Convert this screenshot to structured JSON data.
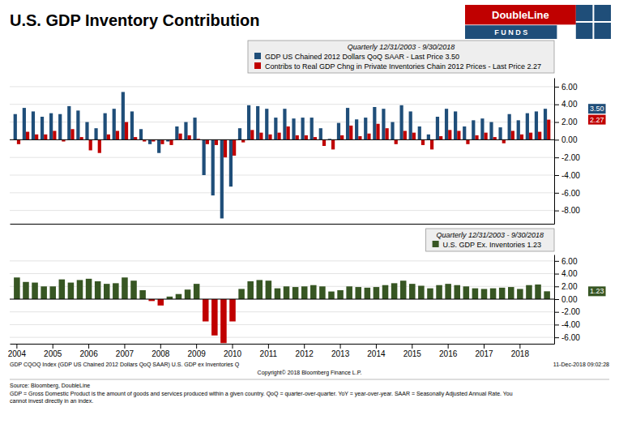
{
  "chart_data": [
    {
      "type": "bar",
      "title": "U.S. GDP Inventory Contribution",
      "subtitle": "Quarterly 12/31/2003 - 9/30/2018",
      "categories": [
        "2004",
        null,
        null,
        null,
        "2005",
        null,
        null,
        null,
        "2006",
        null,
        null,
        null,
        "2007",
        null,
        null,
        null,
        "2008",
        null,
        null,
        null,
        "2009",
        null,
        null,
        null,
        "2010",
        null,
        null,
        null,
        "2011",
        null,
        null,
        null,
        "2012",
        null,
        null,
        null,
        "2013",
        null,
        null,
        null,
        "2014",
        null,
        null,
        null,
        "2015",
        null,
        null,
        null,
        "2016",
        null,
        null,
        null,
        "2017",
        null,
        null,
        null,
        "2018",
        null,
        null,
        null
      ],
      "series": [
        {
          "name": "GDP US Chained 2012 Dollars QoQ SAAR - Last Price 3.50",
          "color": "#1f4e79",
          "values": [
            2.9,
            3.6,
            3.2,
            2.6,
            3.0,
            2.9,
            3.8,
            3.3,
            2.0,
            1.3,
            3.0,
            3.5,
            5.4,
            3.2,
            1.2,
            -0.5,
            -1.5,
            -0.2,
            1.5,
            2.0,
            2.5,
            -4.0,
            -6.3,
            -8.9,
            -5.3,
            1.3,
            3.9,
            3.8,
            3.5,
            2.5,
            3.5,
            2.4,
            2.5,
            2.5,
            1.3,
            0.1,
            1.9,
            3.6,
            2.3,
            2.5,
            3.7,
            3.5,
            2.0,
            3.9,
            3.2,
            1.5,
            0.6,
            2.6,
            3.5,
            3.2,
            1.5,
            2.2,
            2.4,
            2.0,
            1.4,
            2.9,
            2.2,
            3.0,
            3.2,
            3.5
          ]
        },
        {
          "name": "Contribs to Real GDP Chng in Private Inventories Chain 2012 Prices - Last Price 2.27",
          "color": "#c00000",
          "values": [
            -0.5,
            0.9,
            0.6,
            0.6,
            1.0,
            -0.2,
            1.2,
            0.3,
            -1.2,
            -1.5,
            0.6,
            1.0,
            2.0,
            0.3,
            -0.2,
            -0.2,
            -0.5,
            -0.6,
            0.7,
            0.5,
            0.1,
            -0.5,
            -0.6,
            -2.0,
            -1.8,
            -0.3,
            1.1,
            0.8,
            0.6,
            0.8,
            1.5,
            0.5,
            0.5,
            0.3,
            -0.7,
            -1.1,
            0.5,
            1.6,
            0.4,
            0.7,
            1.8,
            1.3,
            -0.5,
            1.0,
            0.8,
            -0.6,
            -1.1,
            0.4,
            1.1,
            1.0,
            -0.5,
            0.5,
            0.8,
            0.3,
            -0.4,
            1.0,
            0.6,
            0.8,
            0.9,
            2.27
          ]
        }
      ],
      "ylim": [
        -9.5,
        7.0
      ],
      "yticks": [
        {
          "value": -8.0,
          "label": "-8.00"
        },
        {
          "value": -6.0,
          "label": "-6.00"
        },
        {
          "value": -4.0,
          "label": "-4.00"
        },
        {
          "value": -2.0,
          "label": "-2.00"
        },
        {
          "value": 0.0,
          "label": "0.00"
        },
        {
          "value": 2.0,
          "label": "2.00"
        },
        {
          "value": 4.0,
          "label": "4.00"
        },
        {
          "value": 6.0,
          "label": "6.00"
        }
      ],
      "grid": true,
      "legend": "top",
      "tick_labels": "y",
      "annotations": [
        {
          "text": "3.50",
          "y": 3.5,
          "color": "#1f4e79"
        },
        {
          "text": "2.27",
          "y": 2.27,
          "color": "#c00000"
        },
        {
          "text": "DoubleLine",
          "color": "#c00000"
        },
        {
          "text": "F U N D S",
          "color": "#1f4e79"
        }
      ]
    },
    {
      "type": "bar",
      "subtitle": "Quarterly 12/31/2003 - 9/30/2018",
      "categories": [
        "2004",
        null,
        null,
        null,
        "2005",
        null,
        null,
        null,
        "2006",
        null,
        null,
        null,
        "2007",
        null,
        null,
        null,
        "2008",
        null,
        null,
        null,
        "2009",
        null,
        null,
        null,
        "2010",
        null,
        null,
        null,
        "2011",
        null,
        null,
        null,
        "2012",
        null,
        null,
        null,
        "2013",
        null,
        null,
        null,
        "2014",
        null,
        null,
        null,
        "2015",
        null,
        null,
        null,
        "2016",
        null,
        null,
        null,
        "2017",
        null,
        null,
        null,
        "2018",
        null,
        null,
        null
      ],
      "series": [
        {
          "name": "U.S. GDP Ex. Inventories 1.23",
          "color": "#375623",
          "colors": [
            "#375623",
            "#375623",
            "#375623",
            "#375623",
            "#375623",
            "#375623",
            "#375623",
            "#375623",
            "#375623",
            "#375623",
            "#375623",
            "#375623",
            "#375623",
            "#375623",
            "#375623",
            "#c00000",
            "#c00000",
            "#375623",
            "#375623",
            "#375623",
            "#375623",
            "#c00000",
            "#c00000",
            "#c00000",
            "#c00000",
            "#375623",
            "#375623",
            "#375623",
            "#375623",
            "#375623",
            "#375623",
            "#375623",
            "#375623",
            "#375623",
            "#375623",
            "#375623",
            "#375623",
            "#375623",
            "#375623",
            "#375623",
            "#375623",
            "#375623",
            "#375623",
            "#375623",
            "#375623",
            "#375623",
            "#375623",
            "#375623",
            "#375623",
            "#375623",
            "#375623",
            "#375623",
            "#375623",
            "#375623",
            "#375623",
            "#375623",
            "#375623",
            "#375623",
            "#375623",
            "#375623"
          ],
          "values": [
            3.4,
            2.7,
            2.6,
            2.0,
            2.0,
            3.1,
            2.6,
            3.0,
            3.2,
            2.8,
            2.4,
            2.5,
            3.4,
            2.9,
            1.4,
            -0.3,
            -1.0,
            0.4,
            0.8,
            1.5,
            2.4,
            -3.5,
            -5.7,
            -6.9,
            -3.5,
            1.6,
            2.8,
            3.0,
            2.9,
            1.7,
            2.0,
            1.9,
            2.0,
            2.2,
            2.0,
            1.2,
            1.4,
            2.0,
            1.9,
            1.8,
            1.9,
            2.2,
            2.5,
            2.9,
            2.4,
            2.1,
            1.7,
            2.2,
            2.4,
            2.2,
            2.0,
            1.7,
            1.6,
            1.7,
            1.8,
            1.9,
            1.6,
            2.2,
            2.3,
            1.23
          ]
        }
      ],
      "ylim": [
        -7.0,
        7.0
      ],
      "yticks": [
        {
          "value": -6.0,
          "label": "-6.00"
        },
        {
          "value": -4.0,
          "label": "-4.00"
        },
        {
          "value": -2.0,
          "label": "-2.00"
        },
        {
          "value": 0.0,
          "label": "0.00"
        },
        {
          "value": 2.0,
          "label": "2.00"
        },
        {
          "value": 4.0,
          "label": "4.00"
        },
        {
          "value": 6.0,
          "label": "6.00"
        }
      ],
      "grid": true,
      "legend": "top",
      "annotations": [
        {
          "text": "1.23",
          "y": 1.23,
          "color": "#375623"
        },
        {
          "text": "GDP CQOQ Index (GDP US Chained 2012 Dollars QoQ SAAR) U.S. GDP ex Inventories  Q"
        },
        {
          "text": "Copyright© 2018 Bloomberg Finance L.P."
        },
        {
          "text": "11-Dec-2018 09:02:28"
        },
        {
          "text": "Source: Bloomberg, DoubleLine\nGDP = Gross Domestic Product is the amount of goods and services produced within a given country.  QoQ = quarter-over-quarter. YoY = year-over-year. SAAR = Seasonally Adjusted Annual Rate. You\ncannot invest directly in an index."
        }
      ]
    }
  ]
}
